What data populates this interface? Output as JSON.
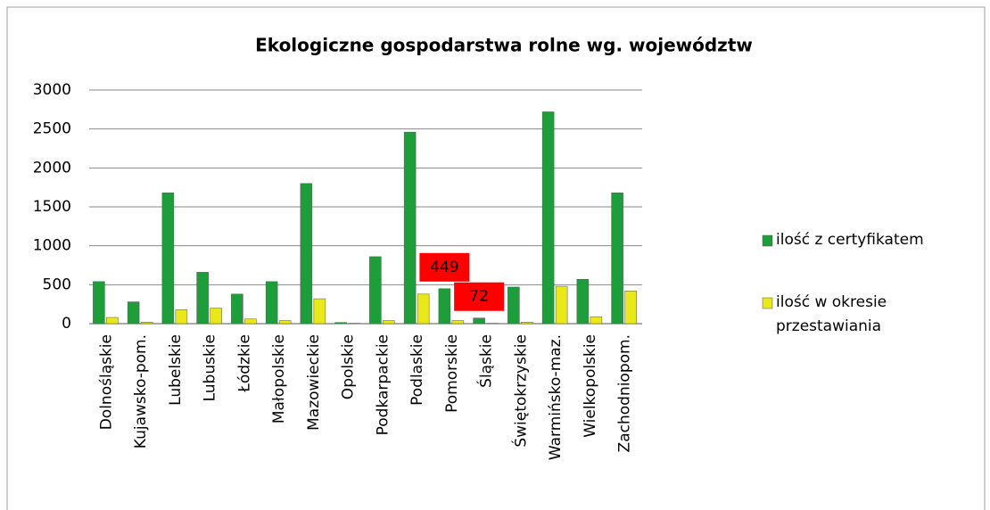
{
  "chart_data": {
    "type": "bar",
    "title": "Ekologiczne gospodarstwa rolne wg. województw",
    "categories": [
      "Dolnośląskie",
      "Kujawsko-pom.",
      "Lubelskie",
      "Lubuskie",
      "Łódzkie",
      "Małopolskie",
      "Mazowieckie",
      "Opolskie",
      "Podkarpackie",
      "Podlaskie",
      "Pomorskie",
      "Śląskie",
      "Świętokrzyskie",
      "Warmińsko-maz.",
      "Wielkopolskie",
      "Zachodniopom."
    ],
    "series": [
      {
        "name": "ilość z certyfikatem",
        "color": "#1e9e3a",
        "values": [
          540,
          280,
          1680,
          660,
          380,
          540,
          1800,
          15,
          860,
          2460,
          449,
          72,
          470,
          2720,
          570,
          1680
        ],
        "value_labels": [
          null,
          null,
          null,
          null,
          null,
          null,
          null,
          null,
          null,
          null,
          "449",
          "72",
          null,
          null,
          null,
          null
        ]
      },
      {
        "name": "ilość w okresie przestawiania",
        "color": "#e8e81a",
        "values": [
          80,
          20,
          180,
          200,
          60,
          40,
          320,
          5,
          40,
          380,
          40,
          5,
          20,
          480,
          90,
          420
        ]
      }
    ],
    "ylim": [
      0,
      3000
    ],
    "yticks": [
      0,
      500,
      1000,
      1500,
      2000,
      2500,
      3000
    ],
    "grid": true,
    "legend": "right"
  }
}
